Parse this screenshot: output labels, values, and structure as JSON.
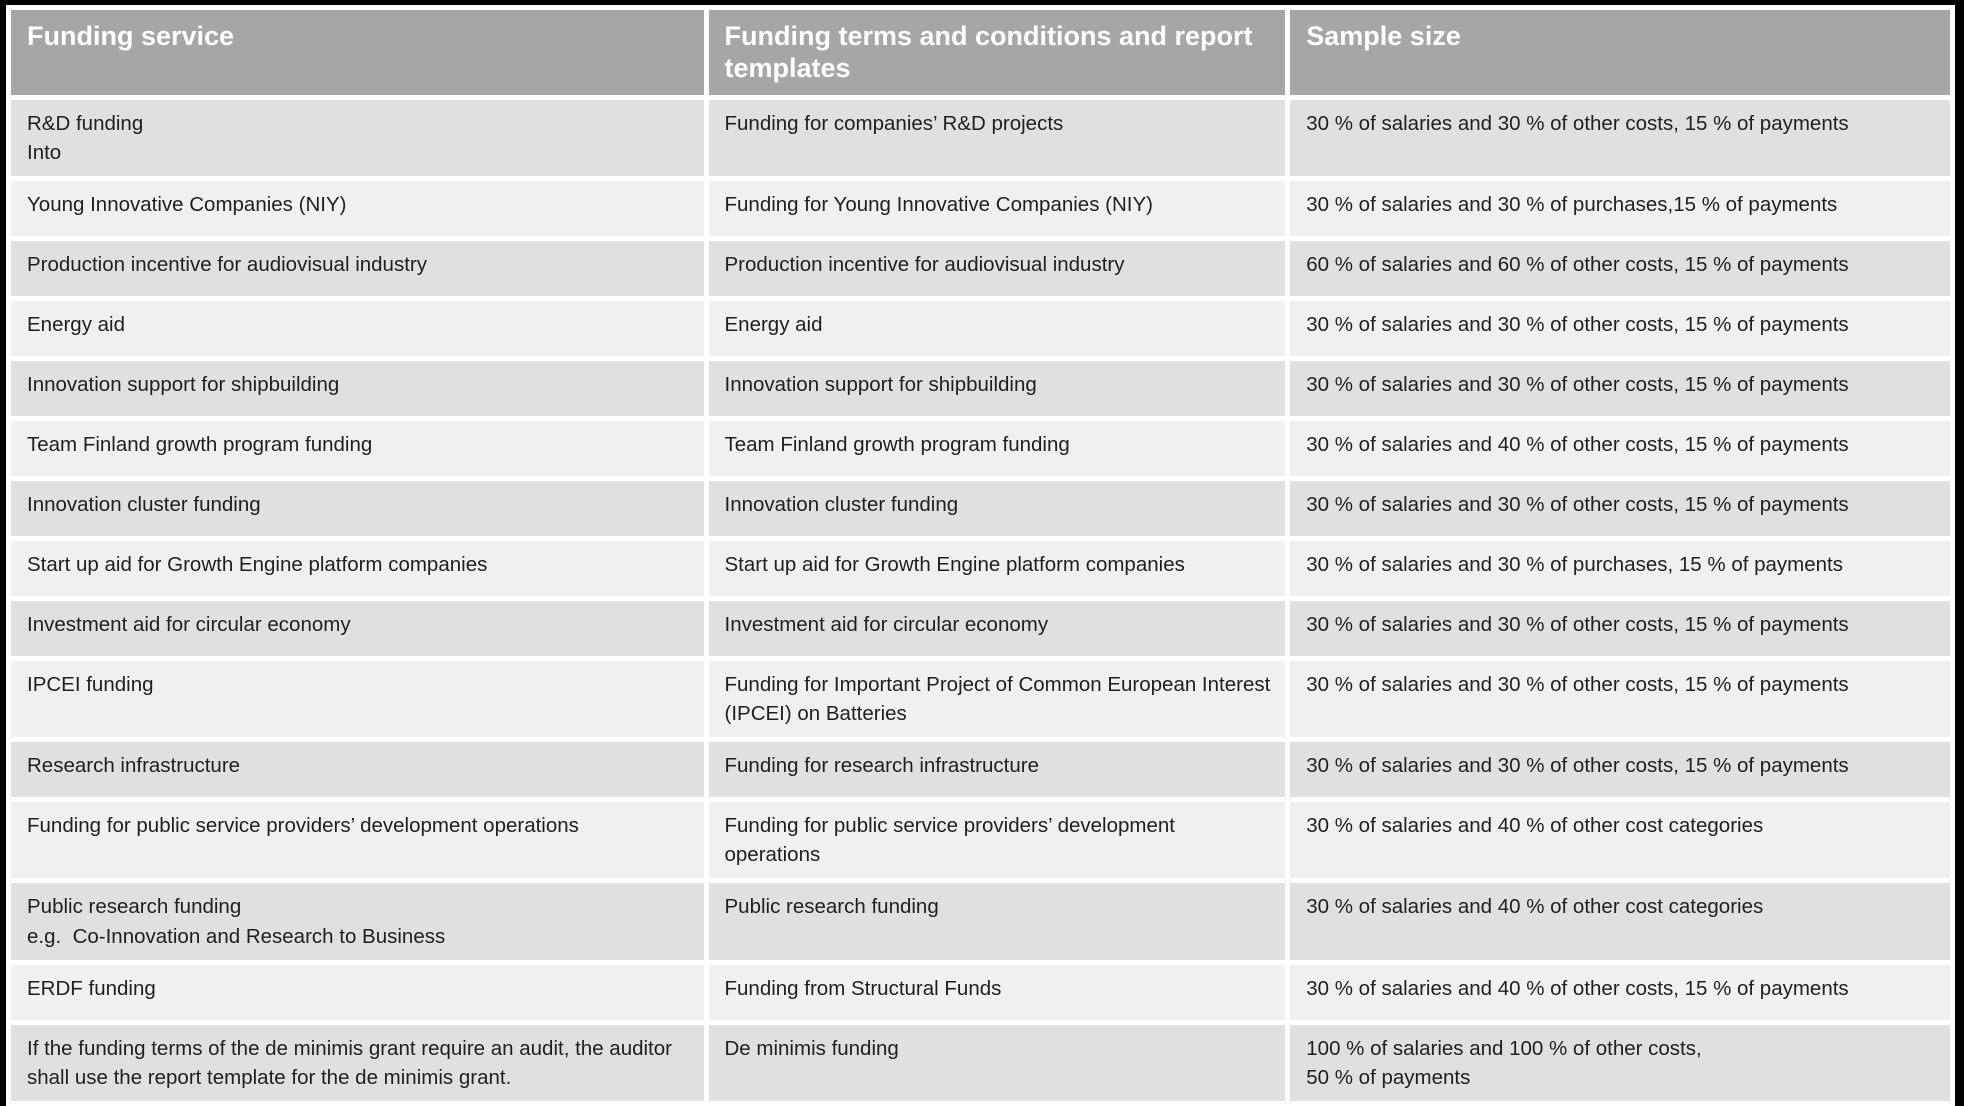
{
  "colors": {
    "frame": "#000000",
    "gutter": "#ffffff",
    "header_bg": "#a6a6a6",
    "header_text": "#ffffff",
    "row_dark": "#e0e0e0",
    "row_light": "#f0f0f0",
    "body_text": "#1f1f1f"
  },
  "table": {
    "columns": [
      {
        "label": "Funding service"
      },
      {
        "label": "Funding terms and conditions and report templates"
      },
      {
        "label": "Sample size"
      }
    ],
    "rows": [
      {
        "service": "R&D funding\nInto",
        "terms": "Funding for companies’ R&D projects",
        "sample": "30 % of salaries and 30 % of other costs, 15 % of payments"
      },
      {
        "service": "Young Innovative Companies (NIY)",
        "terms": "Funding for Young Innovative Companies (NIY)",
        "sample": "30 % of salaries and 30 % of purchases,15 % of payments"
      },
      {
        "service": "Production incentive for audiovisual industry",
        "terms": "Production incentive for audiovisual industry",
        "sample": "60 % of salaries and 60 % of other costs, 15 % of payments"
      },
      {
        "service": "Energy aid",
        "terms": "Energy aid",
        "sample": "30 % of salaries and 30 % of other costs, 15 % of payments"
      },
      {
        "service": "Innovation support for shipbuilding",
        "terms": "Innovation support for shipbuilding",
        "sample": "30 % of salaries and 30 % of other costs, 15 % of payments"
      },
      {
        "service": "Team Finland growth program funding",
        "terms": "Team Finland growth program funding",
        "sample": "30 % of salaries and 40 % of other costs, 15 % of payments"
      },
      {
        "service": "Innovation cluster funding",
        "terms": "Innovation cluster funding",
        "sample": "30 % of salaries and 30 % of other costs, 15 % of payments"
      },
      {
        "service": "Start up aid for Growth Engine platform companies",
        "terms": "Start up aid for Growth Engine platform companies",
        "sample": "30 % of salaries and 30 % of purchases, 15 % of payments"
      },
      {
        "service": "Investment aid for circular economy",
        "terms": "Investment aid for circular economy",
        "sample": "30 % of salaries and 30 % of other costs, 15 % of payments"
      },
      {
        "service": "IPCEI funding",
        "terms": "Funding for Important Project of Common European Interest (IPCEI) on Batteries",
        "sample": "30 % of salaries and 30 % of other costs, 15 % of payments"
      },
      {
        "service": "Research infrastructure",
        "terms": "Funding for research infrastructure",
        "sample": "30 % of salaries and 30 % of other costs, 15 % of payments"
      },
      {
        "service": "Funding for public service providers’ development operations",
        "terms": "Funding for public service providers’ development operations",
        "sample": "30 % of salaries and 40 % of other cost categories"
      },
      {
        "service": "Public research funding\ne.g.  Co-Innovation and Research to Business",
        "terms": "Public research funding",
        "sample": "30 % of salaries and 40 % of other cost categories"
      },
      {
        "service": "ERDF funding",
        "terms": "Funding from Structural Funds",
        "sample": "30 % of salaries and 40 % of other costs, 15 % of payments"
      },
      {
        "service": "If the funding terms of the de minimis grant require an audit, the auditor shall use the report template for the de minimis grant.",
        "terms": "De minimis funding",
        "sample": "100 % of salaries and 100 % of other costs,\n50 % of payments"
      }
    ]
  }
}
